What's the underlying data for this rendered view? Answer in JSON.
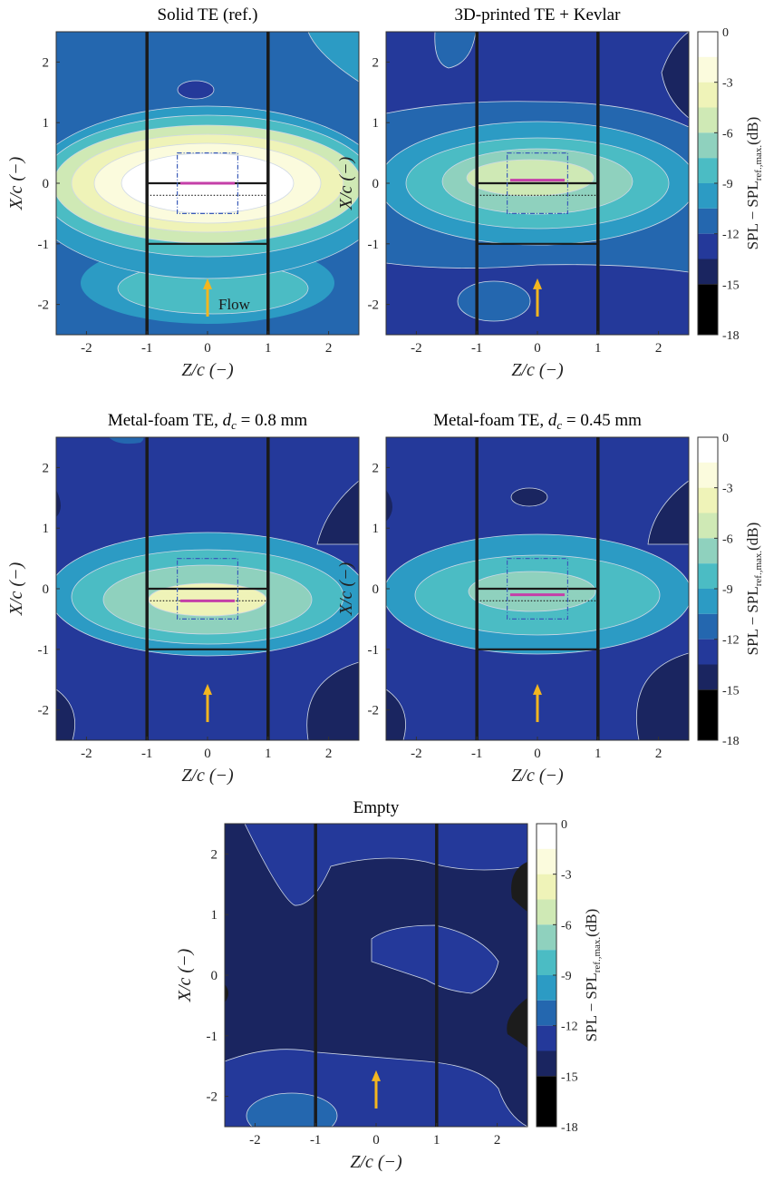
{
  "figure": {
    "xlabel": "Z/c (−)",
    "ylabel": "X/c (−)",
    "colorbar_label": "SPL − SPL",
    "colorbar_label_sub": "ref.,max.",
    "colorbar_label_unit": "(dB)",
    "flow_label": "Flow",
    "accent_colors": {
      "flow_arrow": "#f3b61f",
      "peak_line": "#c43fa8",
      "box": "#3a5bb8",
      "te_lines": "#1a1a1a"
    }
  },
  "chart_data": [
    {
      "type": "heatmap",
      "title": "Solid TE (ref.)",
      "xlim": [
        -2.5,
        2.5
      ],
      "ylim": [
        -2.5,
        2.5
      ],
      "xticks": [
        -2,
        -1,
        0,
        1,
        2
      ],
      "yticks": [
        -2,
        -1,
        0,
        1,
        2
      ],
      "peak_level_db": 0,
      "peak_x": 0,
      "peak_line_x": 0.0,
      "flow_label_shown": true
    },
    {
      "type": "heatmap",
      "title": "3D-printed TE + Kevlar",
      "xlim": [
        -2.5,
        2.5
      ],
      "ylim": [
        -2.5,
        2.5
      ],
      "xticks": [
        -2,
        -1,
        0,
        1,
        2
      ],
      "yticks": [
        -2,
        -1,
        0,
        1,
        2
      ],
      "peak_level_db": -4.5,
      "peak_line_x": 0.05,
      "flow_label_shown": false
    },
    {
      "type": "heatmap",
      "title": "Metal-foam TE, d_c = 0.8 mm",
      "title_main": "Metal-foam TE, ",
      "title_var": "d",
      "title_sub": "c",
      "title_rest": " = 0.8 mm",
      "xlim": [
        -2.5,
        2.5
      ],
      "ylim": [
        -2.5,
        2.5
      ],
      "xticks": [
        -2,
        -1,
        0,
        1,
        2
      ],
      "yticks": [
        -2,
        -1,
        0,
        1,
        2
      ],
      "peak_level_db": -5.5,
      "peak_line_x": -0.2,
      "flow_label_shown": false
    },
    {
      "type": "heatmap",
      "title": "Metal-foam TE, d_c = 0.45 mm",
      "title_main": "Metal-foam TE, ",
      "title_var": "d",
      "title_sub": "c",
      "title_rest": " = 0.45 mm",
      "xlim": [
        -2.5,
        2.5
      ],
      "ylim": [
        -2.5,
        2.5
      ],
      "xticks": [
        -2,
        -1,
        0,
        1,
        2
      ],
      "yticks": [
        -2,
        -1,
        0,
        1,
        2
      ],
      "peak_level_db": -6.5,
      "peak_line_x": -0.1,
      "flow_label_shown": false
    },
    {
      "type": "heatmap",
      "title": "Empty",
      "xlim": [
        -2.5,
        2.5
      ],
      "ylim": [
        -2.5,
        2.5
      ],
      "xticks": [
        -2,
        -1,
        0,
        1,
        2
      ],
      "yticks": [
        -2,
        -1,
        0,
        1,
        2
      ],
      "peak_level_db": -12.5,
      "flow_label_shown": false
    }
  ],
  "colorbar": {
    "range_db": [
      -18,
      0
    ],
    "ticks": [
      "0",
      "-3",
      "-6",
      "-9",
      "-12",
      "-15",
      "-18"
    ],
    "levels": [
      {
        "from": 0,
        "to": -1.5,
        "color": "#ffffff"
      },
      {
        "from": -1.5,
        "to": -3,
        "color": "#fbfbdd"
      },
      {
        "from": -3,
        "to": -4.5,
        "color": "#eff3b8"
      },
      {
        "from": -4.5,
        "to": -6,
        "color": "#cfe9b5"
      },
      {
        "from": -6,
        "to": -7.5,
        "color": "#8fd1be"
      },
      {
        "from": -7.5,
        "to": -9,
        "color": "#4bbcc4"
      },
      {
        "from": -9,
        "to": -10.5,
        "color": "#2c9bc4"
      },
      {
        "from": -10.5,
        "to": -12,
        "color": "#2467af"
      },
      {
        "from": -12,
        "to": -13.5,
        "color": "#24399a"
      },
      {
        "from": -13.5,
        "to": -15,
        "color": "#1a2560"
      },
      {
        "from": -15,
        "to": -18,
        "color": "#000000"
      }
    ]
  }
}
